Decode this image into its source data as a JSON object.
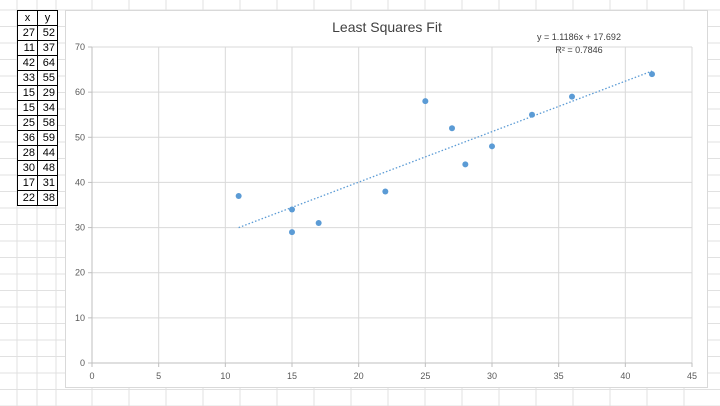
{
  "table": {
    "header": [
      "x",
      "y"
    ],
    "rows": [
      [
        27,
        52
      ],
      [
        11,
        37
      ],
      [
        42,
        64
      ],
      [
        33,
        55
      ],
      [
        15,
        29
      ],
      [
        15,
        34
      ],
      [
        25,
        58
      ],
      [
        36,
        59
      ],
      [
        28,
        44
      ],
      [
        30,
        48
      ],
      [
        17,
        31
      ],
      [
        22,
        38
      ]
    ]
  },
  "chart_data": {
    "type": "scatter",
    "title": "Least Squares Fit",
    "xlabel": "",
    "ylabel": "",
    "xlim": [
      0,
      45
    ],
    "ylim": [
      0,
      70
    ],
    "x_ticks": [
      0,
      5,
      10,
      15,
      20,
      25,
      30,
      35,
      40,
      45
    ],
    "y_ticks": [
      0,
      10,
      20,
      30,
      40,
      50,
      60,
      70
    ],
    "grid": true,
    "legend": "none",
    "point_color": "#5b9bd5",
    "series": [
      {
        "x": [
          27,
          11,
          42,
          33,
          15,
          15,
          25,
          36,
          28,
          30,
          17,
          22
        ],
        "y": [
          52,
          37,
          64,
          55,
          29,
          34,
          58,
          59,
          44,
          48,
          31,
          38
        ]
      }
    ],
    "trendline": {
      "type": "linear-dotted",
      "slope": 1.1186,
      "intercept": 17.692,
      "x_range": [
        11,
        42
      ],
      "equation_label": "y = 1.1186x + 17.692",
      "r2_label": "R² = 0.7846"
    }
  }
}
